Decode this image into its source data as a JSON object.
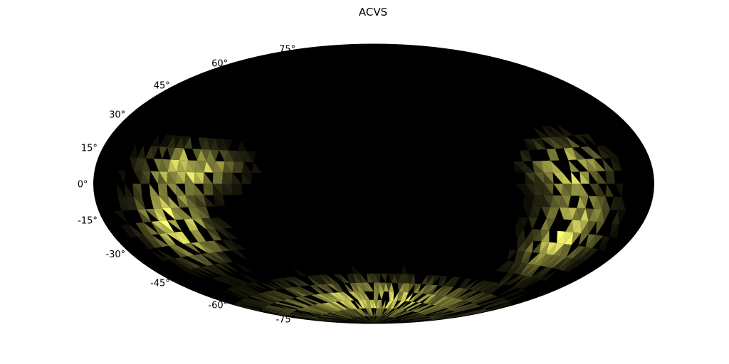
{
  "chart_data": {
    "type": "heatmap",
    "projection": "hammer",
    "title": "ACVS",
    "xlabel": "",
    "ylabel": "",
    "grid": false,
    "background_color": "#000000",
    "colors": {
      "low": "#000000",
      "high": "#ffff80"
    },
    "y_ticks": [
      75,
      60,
      45,
      30,
      15,
      0,
      -15,
      -30,
      -45,
      -60,
      -75
    ],
    "y_tick_labels": [
      "75°",
      "60°",
      "45°",
      "30°",
      "15°",
      "0°",
      "-15°",
      "-30°",
      "-45°",
      "-60°",
      "-75°"
    ],
    "coverage_lat_range": [
      -90,
      25
    ],
    "density_regions": [
      {
        "lon": -112,
        "lat": 8,
        "spread_lon": 26,
        "spread_lat": 10,
        "intensity": 0.9
      },
      {
        "lon": -128,
        "lat": -20,
        "spread_lon": 22,
        "spread_lat": 18,
        "intensity": 1.0
      },
      {
        "lon": 120,
        "lat": 8,
        "spread_lon": 22,
        "spread_lat": 12,
        "intensity": 0.85
      },
      {
        "lon": 128,
        "lat": -25,
        "spread_lon": 22,
        "spread_lat": 18,
        "intensity": 0.9
      },
      {
        "lon": 0,
        "lat": -72,
        "spread_lon": 140,
        "spread_lat": 12,
        "intensity": 0.85
      }
    ]
  }
}
